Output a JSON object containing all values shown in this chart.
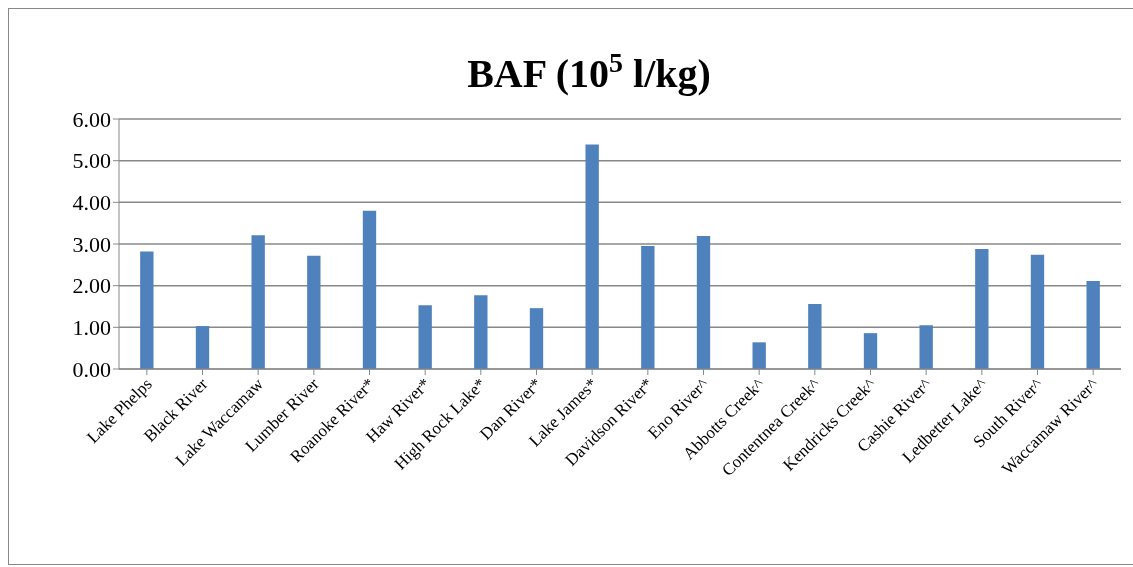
{
  "chart_data": {
    "type": "bar",
    "title": "BAF (10$^{5}$ l/kg)",
    "categories": [
      "Lake Phelps",
      "Black River",
      "Lake Waccamaw",
      "Lumber River",
      "Roanoke River*",
      "Haw River*",
      "High Rock Lake*",
      "Dan River*",
      "Lake James*",
      "Davidson River*",
      "Eno River^",
      "Abbotts Creek^",
      "Contentnea Creek^",
      "Kendricks Creek^",
      "Cashie River^",
      "Ledbetter Lake^",
      "South River^",
      "Waccamaw River^"
    ],
    "values": [
      2.82,
      1.03,
      3.21,
      2.72,
      3.8,
      1.53,
      1.77,
      1.46,
      5.39,
      2.95,
      3.19,
      0.64,
      1.56,
      0.86,
      1.05,
      2.88,
      2.74,
      2.11
    ],
    "color": "#4f81bd",
    "ylim": [
      0,
      6
    ],
    "yticks": [
      {
        "value": 0,
        "label": "0.00"
      },
      {
        "value": 1,
        "label": "1.00"
      },
      {
        "value": 2,
        "label": "2.00"
      },
      {
        "value": 3,
        "label": "3.00"
      },
      {
        "value": 4,
        "label": "4.00"
      },
      {
        "value": 5,
        "label": "5.00"
      },
      {
        "value": 6,
        "label": "6.00"
      }
    ],
    "grid": "y"
  }
}
